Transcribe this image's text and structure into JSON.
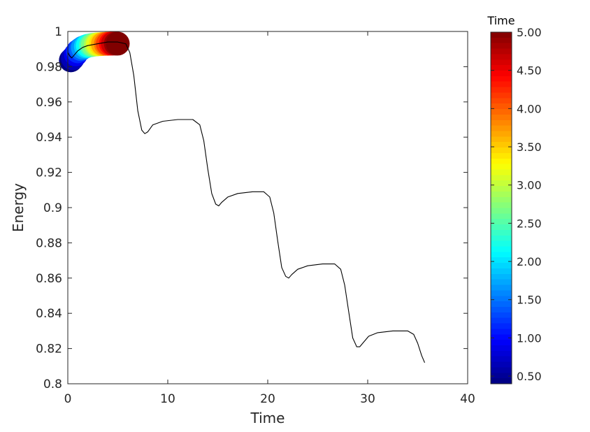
{
  "chart_data": {
    "type": "line",
    "title": "",
    "xlabel": "Time",
    "ylabel": "Energy",
    "xlim": [
      0,
      40
    ],
    "ylim": [
      0.8,
      1.0
    ],
    "xticks": [
      0,
      10,
      20,
      30,
      40
    ],
    "xtick_labels": [
      "0",
      "10",
      "20",
      "30",
      "40"
    ],
    "yticks": [
      0.8,
      0.82,
      0.84,
      0.86,
      0.88,
      0.9,
      0.92,
      0.94,
      0.96,
      0.98,
      1.0
    ],
    "ytick_labels": [
      "0.8",
      "0.82",
      "0.84",
      "0.86",
      "0.88",
      "0.9",
      "0.92",
      "0.94",
      "0.96",
      "0.98",
      "1"
    ],
    "grid": false,
    "line_color": "#000000",
    "series": [
      {
        "x": [
          0,
          0.2,
          0.4,
          0.7,
          1.0,
          1.5,
          2.0,
          3.0,
          4.0,
          5.0,
          5.8,
          6.2,
          6.6,
          7.0,
          7.4,
          7.7,
          8.0,
          8.5,
          9.5,
          11.0,
          12.5,
          13.2,
          13.6,
          14.0,
          14.4,
          14.8,
          15.1,
          15.4,
          16.0,
          17.0,
          18.5,
          19.6,
          20.2,
          20.6,
          21.0,
          21.4,
          21.8,
          22.1,
          22.4,
          23.0,
          24.0,
          25.5,
          26.7,
          27.3,
          27.7,
          28.1,
          28.5,
          28.9,
          29.2,
          29.5,
          30.1,
          31.0,
          32.5,
          34.0,
          34.6,
          35.0,
          35.4,
          35.7
        ],
        "y": [
          0.988,
          0.986,
          0.985,
          0.987,
          0.989,
          0.991,
          0.992,
          0.993,
          0.994,
          0.994,
          0.993,
          0.988,
          0.975,
          0.955,
          0.944,
          0.942,
          0.943,
          0.947,
          0.949,
          0.95,
          0.95,
          0.947,
          0.938,
          0.922,
          0.908,
          0.902,
          0.901,
          0.903,
          0.906,
          0.908,
          0.909,
          0.909,
          0.906,
          0.897,
          0.881,
          0.866,
          0.861,
          0.86,
          0.862,
          0.865,
          0.867,
          0.868,
          0.868,
          0.865,
          0.856,
          0.841,
          0.826,
          0.821,
          0.821,
          0.823,
          0.827,
          0.829,
          0.83,
          0.83,
          0.828,
          0.823,
          0.816,
          0.812
        ]
      }
    ],
    "markers": {
      "type": "scatter",
      "x": [
        0.3,
        0.5,
        0.8,
        1.0,
        1.3,
        1.5,
        1.8,
        2.0,
        2.3,
        2.5,
        2.8,
        3.0,
        3.3,
        3.5,
        3.8,
        4.0,
        4.3,
        4.5,
        4.8,
        5.0
      ],
      "y": [
        0.9836,
        0.9848,
        0.987,
        0.9887,
        0.99,
        0.9908,
        0.9915,
        0.9919,
        0.9922,
        0.9924,
        0.9926,
        0.9927,
        0.9928,
        0.9929,
        0.993,
        0.993,
        0.9931,
        0.9931,
        0.9931,
        0.9931
      ],
      "time": [
        0.4,
        0.65,
        0.9,
        1.15,
        1.4,
        1.65,
        1.9,
        2.15,
        2.4,
        2.65,
        2.9,
        3.15,
        3.4,
        3.65,
        3.9,
        4.15,
        4.4,
        4.65,
        4.9,
        5.0
      ]
    },
    "colorbar": {
      "title": "Time",
      "colormap": "jet",
      "range": [
        0.4,
        5.0
      ],
      "ticks": [
        0.5,
        1.0,
        1.5,
        2.0,
        2.5,
        3.0,
        3.5,
        4.0,
        4.5,
        5.0
      ],
      "tick_labels": [
        "0.50",
        "1.00",
        "1.50",
        "2.00",
        "2.50",
        "3.00",
        "3.50",
        "4.00",
        "4.50",
        "5.00"
      ]
    }
  }
}
